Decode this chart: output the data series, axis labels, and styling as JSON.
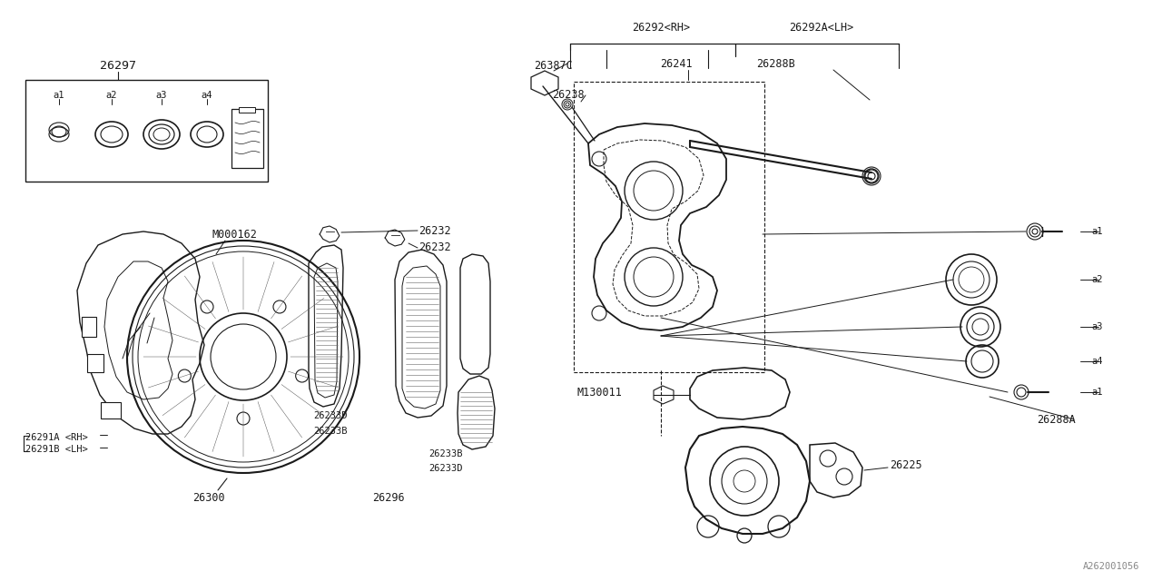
{
  "bg_color": "#ffffff",
  "line_color": "#1a1a1a",
  "text_color": "#1a1a1a",
  "gray_color": "#888888",
  "parts": {
    "p26297": "26297",
    "p26292rh": "26292<RH>",
    "p26292lh": "26292A<LH>",
    "p26387c": "26387C",
    "p26241": "26241",
    "p26288b": "26288B",
    "p26238": "26238",
    "p26232a": "26232",
    "p26232b": "26232",
    "p26233d_tl": "26233D",
    "p26233b_bl": "26233B",
    "p26233b_tr": "26233B",
    "p26233d_br": "26233D",
    "p26296": "26296",
    "pm000162": "M000162",
    "p26300": "26300",
    "p26291a": "26291A <RH>",
    "p26291b": "26291B <LH>",
    "p26225": "26225",
    "p26288a": "26288A",
    "pm130011": "M130011",
    "pa262": "A262001056",
    "a1": "a1",
    "a2": "a2",
    "a3": "a3",
    "a4": "a4"
  },
  "fs_small": 7.5,
  "fs_med": 8.5,
  "fs_large": 9.5
}
